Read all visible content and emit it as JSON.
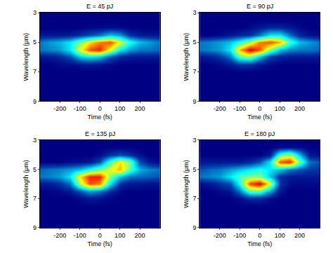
{
  "chart_data": [
    {
      "type": "heatmap",
      "title": "E = 45 pJ",
      "xlabel": "Time (fs)",
      "ylabel": "Wavelength (μm)",
      "x": [
        -300,
        -250,
        -200,
        -150,
        -100,
        -50,
        0,
        50,
        100,
        150,
        200,
        250,
        300
      ],
      "y": [
        3,
        3.5,
        4,
        4.5,
        5,
        5.5,
        6,
        6.5,
        7,
        7.5,
        8,
        8.5,
        9
      ],
      "xlim": [
        -300,
        300
      ],
      "ylim": [
        9,
        3
      ],
      "xticks": [
        -200,
        -100,
        0,
        100,
        200
      ],
      "yticks": [
        3,
        5,
        7,
        9
      ],
      "zlim": [
        0,
        1
      ],
      "z": [
        [
          0,
          0,
          0,
          0,
          0,
          0,
          0,
          0,
          0,
          0,
          0,
          0,
          0
        ],
        [
          0,
          0,
          0,
          0,
          0,
          0,
          0,
          0,
          0,
          0,
          0,
          0,
          0
        ],
        [
          0,
          0,
          0,
          0,
          0,
          0.02,
          0.02,
          0.03,
          0.02,
          0,
          0,
          0,
          0
        ],
        [
          0.05,
          0.05,
          0.05,
          0.06,
          0.1,
          0.15,
          0.2,
          0.3,
          0.25,
          0.1,
          0.06,
          0.05,
          0.05
        ],
        [
          0.2,
          0.25,
          0.28,
          0.35,
          0.5,
          0.65,
          0.75,
          0.8,
          0.6,
          0.4,
          0.3,
          0.25,
          0.2
        ],
        [
          0.2,
          0.22,
          0.25,
          0.35,
          0.6,
          0.8,
          0.85,
          0.6,
          0.35,
          0.25,
          0.2,
          0.2,
          0.18
        ],
        [
          0.05,
          0.05,
          0.08,
          0.15,
          0.3,
          0.35,
          0.3,
          0.15,
          0.08,
          0.05,
          0.05,
          0.05,
          0.05
        ],
        [
          0,
          0,
          0.02,
          0.02,
          0.04,
          0.05,
          0.04,
          0.02,
          0,
          0,
          0,
          0,
          0
        ],
        [
          0,
          0,
          0,
          0,
          0,
          0,
          0,
          0,
          0,
          0,
          0,
          0,
          0
        ],
        [
          0,
          0,
          0,
          0,
          0,
          0,
          0,
          0,
          0,
          0,
          0,
          0,
          0
        ],
        [
          0,
          0,
          0,
          0,
          0,
          0,
          0,
          0,
          0,
          0,
          0,
          0,
          0
        ],
        [
          0,
          0,
          0,
          0,
          0,
          0,
          0,
          0,
          0,
          0,
          0,
          0,
          0
        ],
        [
          0,
          0,
          0,
          0,
          0,
          0,
          0,
          0,
          0,
          0,
          0,
          0,
          0
        ]
      ]
    },
    {
      "type": "heatmap",
      "title": "E = 90 pJ",
      "xlabel": "Time (fs)",
      "ylabel": "Wavelength (μm)",
      "x": [
        -300,
        -250,
        -200,
        -150,
        -100,
        -50,
        0,
        50,
        100,
        150,
        200,
        250,
        300
      ],
      "y": [
        3,
        3.5,
        4,
        4.5,
        5,
        5.5,
        6,
        6.5,
        7,
        7.5,
        8,
        8.5,
        9
      ],
      "xlim": [
        -300,
        300
      ],
      "ylim": [
        9,
        3
      ],
      "xticks": [
        -200,
        -100,
        0,
        100,
        200
      ],
      "yticks": [
        3,
        5,
        7,
        9
      ],
      "zlim": [
        0,
        1
      ],
      "z": [
        [
          0,
          0,
          0,
          0,
          0,
          0,
          0,
          0,
          0,
          0,
          0,
          0,
          0
        ],
        [
          0,
          0,
          0,
          0,
          0,
          0,
          0,
          0,
          0,
          0,
          0,
          0,
          0
        ],
        [
          0,
          0,
          0,
          0,
          0,
          0.02,
          0.05,
          0.08,
          0.08,
          0.05,
          0.02,
          0,
          0
        ],
        [
          0,
          0,
          0.02,
          0.05,
          0.08,
          0.1,
          0.2,
          0.35,
          0.35,
          0.2,
          0.08,
          0.04,
          0.02
        ],
        [
          0.2,
          0.22,
          0.25,
          0.3,
          0.4,
          0.55,
          0.75,
          0.8,
          0.7,
          0.45,
          0.3,
          0.25,
          0.2
        ],
        [
          0.2,
          0.22,
          0.25,
          0.35,
          0.7,
          0.9,
          0.8,
          0.5,
          0.3,
          0.22,
          0.2,
          0.2,
          0.18
        ],
        [
          0.05,
          0.06,
          0.1,
          0.2,
          0.45,
          0.5,
          0.3,
          0.12,
          0.07,
          0.05,
          0.05,
          0.05,
          0.05
        ],
        [
          0,
          0,
          0.02,
          0.05,
          0.1,
          0.1,
          0.05,
          0.02,
          0,
          0,
          0,
          0,
          0
        ],
        [
          0,
          0,
          0,
          0,
          0,
          0,
          0,
          0,
          0,
          0,
          0,
          0,
          0
        ],
        [
          0,
          0,
          0,
          0,
          0,
          0,
          0,
          0,
          0,
          0,
          0,
          0,
          0
        ],
        [
          0,
          0,
          0,
          0,
          0,
          0,
          0,
          0,
          0,
          0,
          0,
          0,
          0
        ],
        [
          0,
          0,
          0,
          0,
          0,
          0,
          0,
          0,
          0,
          0,
          0,
          0,
          0
        ],
        [
          0,
          0,
          0,
          0,
          0,
          0,
          0,
          0,
          0,
          0,
          0,
          0,
          0
        ]
      ]
    },
    {
      "type": "heatmap",
      "title": "E = 135 pJ",
      "xlabel": "Time (fs)",
      "ylabel": "Wavelength (μm)",
      "x": [
        -300,
        -250,
        -200,
        -150,
        -100,
        -50,
        0,
        50,
        100,
        150,
        200,
        250,
        300
      ],
      "y": [
        3,
        3.5,
        4,
        4.5,
        5,
        5.5,
        6,
        6.5,
        7,
        7.5,
        8,
        8.5,
        9
      ],
      "xlim": [
        -300,
        300
      ],
      "ylim": [
        9,
        3
      ],
      "xticks": [
        -200,
        -100,
        0,
        100,
        200
      ],
      "yticks": [
        3,
        5,
        7,
        9
      ],
      "zlim": [
        0,
        1
      ],
      "z": [
        [
          0,
          0,
          0,
          0,
          0,
          0,
          0,
          0,
          0,
          0,
          0,
          0,
          0
        ],
        [
          0,
          0,
          0,
          0,
          0,
          0,
          0,
          0,
          0,
          0,
          0,
          0,
          0
        ],
        [
          0,
          0,
          0,
          0,
          0,
          0,
          0.02,
          0.1,
          0.15,
          0.1,
          0.03,
          0,
          0
        ],
        [
          0,
          0,
          0,
          0.02,
          0.03,
          0.05,
          0.15,
          0.45,
          0.65,
          0.5,
          0.15,
          0.05,
          0.02
        ],
        [
          0.18,
          0.2,
          0.22,
          0.25,
          0.3,
          0.4,
          0.5,
          0.6,
          0.7,
          0.45,
          0.28,
          0.22,
          0.2
        ],
        [
          0.2,
          0.22,
          0.25,
          0.35,
          0.65,
          0.85,
          0.85,
          0.5,
          0.3,
          0.2,
          0.18,
          0.17,
          0.15
        ],
        [
          0.05,
          0.06,
          0.1,
          0.2,
          0.55,
          0.8,
          0.75,
          0.35,
          0.1,
          0.05,
          0.05,
          0.04,
          0.04
        ],
        [
          0,
          0.01,
          0.02,
          0.05,
          0.15,
          0.25,
          0.2,
          0.08,
          0.02,
          0,
          0,
          0,
          0
        ],
        [
          0,
          0,
          0,
          0,
          0.02,
          0.05,
          0.04,
          0.01,
          0,
          0,
          0,
          0,
          0
        ],
        [
          0,
          0,
          0,
          0,
          0,
          0,
          0,
          0,
          0,
          0,
          0,
          0,
          0
        ],
        [
          0,
          0,
          0,
          0,
          0,
          0,
          0,
          0,
          0,
          0,
          0,
          0,
          0
        ],
        [
          0,
          0,
          0,
          0,
          0,
          0,
          0,
          0,
          0,
          0,
          0,
          0,
          0
        ],
        [
          0,
          0,
          0,
          0,
          0,
          0,
          0,
          0,
          0,
          0,
          0,
          0,
          0
        ]
      ]
    },
    {
      "type": "heatmap",
      "title": "E = 180 pJ",
      "xlabel": "Time (fs)",
      "ylabel": "Wavelength (μm)",
      "x": [
        -300,
        -250,
        -200,
        -150,
        -100,
        -50,
        0,
        50,
        100,
        150,
        200,
        250,
        300
      ],
      "y": [
        3,
        3.5,
        4,
        4.5,
        5,
        5.5,
        6,
        6.5,
        7,
        7.5,
        8,
        8.5,
        9
      ],
      "xlim": [
        -300,
        300
      ],
      "ylim": [
        9,
        3
      ],
      "xticks": [
        -200,
        -100,
        0,
        100,
        200
      ],
      "yticks": [
        3,
        5,
        7,
        9
      ],
      "zlim": [
        0,
        1
      ],
      "z": [
        [
          0,
          0,
          0,
          0,
          0,
          0,
          0,
          0,
          0,
          0,
          0,
          0,
          0
        ],
        [
          0,
          0,
          0,
          0,
          0,
          0,
          0,
          0,
          0.02,
          0.03,
          0.02,
          0,
          0
        ],
        [
          0,
          0,
          0,
          0,
          0,
          0,
          0,
          0.05,
          0.45,
          0.55,
          0.3,
          0.05,
          0.02
        ],
        [
          0.05,
          0.05,
          0.05,
          0.05,
          0.05,
          0.08,
          0.15,
          0.35,
          0.8,
          0.85,
          0.5,
          0.2,
          0.15
        ],
        [
          0.15,
          0.18,
          0.2,
          0.25,
          0.3,
          0.35,
          0.4,
          0.35,
          0.3,
          0.2,
          0.15,
          0.12,
          0.1
        ],
        [
          0.2,
          0.22,
          0.25,
          0.35,
          0.45,
          0.5,
          0.5,
          0.3,
          0.1,
          0.05,
          0.05,
          0.05,
          0.05
        ],
        [
          0.03,
          0.05,
          0.1,
          0.15,
          0.4,
          0.8,
          0.9,
          0.6,
          0.1,
          0.03,
          0.02,
          0.02,
          0.02
        ],
        [
          0,
          0,
          0.02,
          0.05,
          0.2,
          0.45,
          0.45,
          0.25,
          0.05,
          0,
          0,
          0,
          0
        ],
        [
          0,
          0,
          0,
          0,
          0.03,
          0.08,
          0.08,
          0.03,
          0,
          0,
          0,
          0,
          0
        ],
        [
          0,
          0,
          0,
          0,
          0,
          0,
          0,
          0,
          0,
          0,
          0,
          0,
          0
        ],
        [
          0,
          0,
          0,
          0,
          0,
          0,
          0,
          0,
          0,
          0,
          0,
          0,
          0
        ],
        [
          0,
          0,
          0,
          0,
          0,
          0,
          0,
          0,
          0,
          0,
          0,
          0,
          0
        ],
        [
          0,
          0,
          0,
          0,
          0,
          0,
          0,
          0,
          0,
          0,
          0,
          0,
          0
        ]
      ]
    }
  ]
}
